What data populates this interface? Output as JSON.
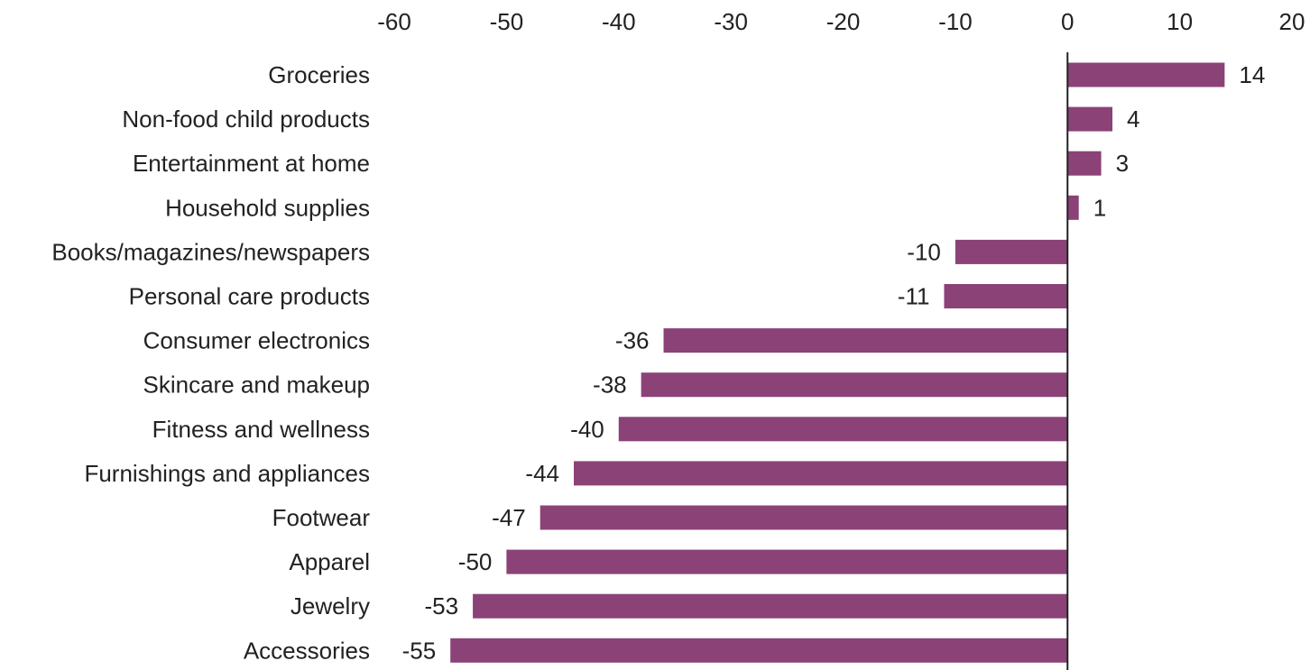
{
  "chart_data": {
    "type": "bar",
    "orientation": "horizontal",
    "categories": [
      "Groceries",
      "Non-food child products",
      "Entertainment at home",
      "Household supplies",
      "Books/magazines/newspapers",
      "Personal care products",
      "Consumer electronics",
      "Skincare and makeup",
      "Fitness and wellness",
      "Furnishings and appliances",
      "Footwear",
      "Apparel",
      "Jewelry",
      "Accessories"
    ],
    "values": [
      14,
      4,
      3,
      1,
      -10,
      -11,
      -36,
      -38,
      -40,
      -44,
      -47,
      -50,
      -53,
      -55
    ],
    "xlim": [
      -60,
      20
    ],
    "xticks": [
      "-60",
      "-50",
      "-40",
      "-30",
      "-20",
      "-10",
      "0",
      "10",
      "20"
    ],
    "xaxis_position": "top",
    "grid": false,
    "bar_color": "#8b4277"
  }
}
